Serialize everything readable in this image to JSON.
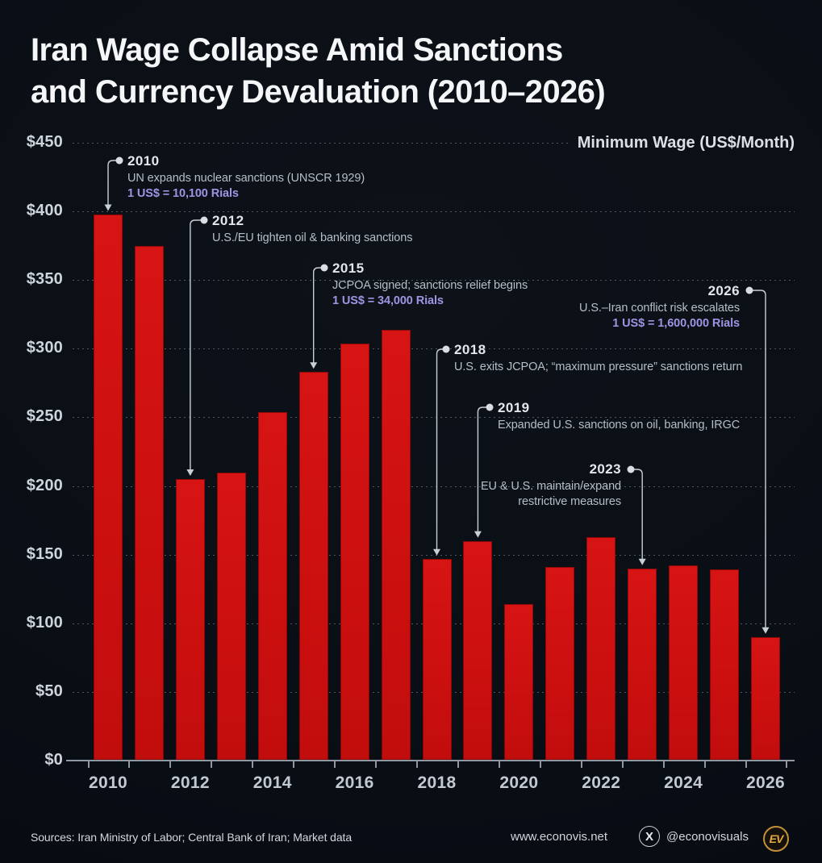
{
  "title": {
    "line1": "Iran Wage Collapse Amid Sanctions",
    "line2": "and Currency Devaluation (2010–2026)"
  },
  "axis_unit_label": "Minimum Wage (US$/Month)",
  "chart_data": {
    "type": "bar",
    "title": "Iran Wage Collapse Amid Sanctions and Currency Devaluation (2010–2026)",
    "ylabel": "Minimum Wage (US$/Month)",
    "xlabel": "",
    "ylim": [
      0,
      450
    ],
    "grid": "dashed horizontal",
    "bar_color": "#cf1010",
    "x": [
      2010,
      2011,
      2012,
      2013,
      2014,
      2015,
      2016,
      2017,
      2018,
      2019,
      2020,
      2021,
      2022,
      2023,
      2024,
      2025,
      2026
    ],
    "values": [
      398,
      375,
      205,
      210,
      254,
      283,
      304,
      314,
      147,
      160,
      114,
      141,
      163,
      140,
      142,
      139,
      90
    ],
    "y_ticks": [
      {
        "label": "$450",
        "value": 450
      },
      {
        "label": "$400",
        "value": 400
      },
      {
        "label": "$350",
        "value": 350
      },
      {
        "label": "$300",
        "value": 300
      },
      {
        "label": "$250",
        "value": 250
      },
      {
        "label": "$200",
        "value": 200
      },
      {
        "label": "$150",
        "value": 150
      },
      {
        "label": "$100",
        "value": 100
      },
      {
        "label": "$50",
        "value": 50
      },
      {
        "label": "$0",
        "value": 0
      }
    ],
    "x_tick_labels": [
      "2010",
      "2012",
      "2014",
      "2016",
      "2018",
      "2020",
      "2022",
      "2024",
      "2026"
    ]
  },
  "annotations": [
    {
      "year": "2010",
      "lines": [
        "UN expands nuclear sanctions (UNSCR 1929)"
      ],
      "rial": "1 US$ = 10,100 Rials",
      "align": "left",
      "dot": [
        148,
        199
      ],
      "text": [
        158,
        190
      ]
    },
    {
      "year": "2012",
      "lines": [
        "U.S./EU tighten oil & banking sanctions"
      ],
      "rial": null,
      "align": "left",
      "dot": [
        253,
        273
      ],
      "text": [
        263,
        264
      ]
    },
    {
      "year": "2015",
      "lines": [
        "JCPOA signed; sanctions relief begins"
      ],
      "rial": "1 US$ = 34,000 Rials",
      "align": "left",
      "dot": [
        402,
        332
      ],
      "text": [
        412,
        323
      ]
    },
    {
      "year": "2018",
      "lines": [
        "U.S. exits JCPOA; “maximum pressure” sanctions return"
      ],
      "rial": null,
      "align": "left",
      "dot": [
        553,
        433
      ],
      "text": [
        563,
        424
      ]
    },
    {
      "year": "2019",
      "lines": [
        "Expanded U.S. sanctions on oil, banking, IRGC"
      ],
      "rial": null,
      "align": "left",
      "dot": [
        607,
        505
      ],
      "text": [
        617,
        496
      ]
    },
    {
      "year": "2023",
      "lines": [
        "EU & U.S. maintain/expand",
        "restrictive measures"
      ],
      "rial": null,
      "align": "right",
      "dot": [
        782,
        582
      ],
      "text": [
        770,
        572
      ]
    },
    {
      "year": "2026",
      "lines": [
        "U.S.–Iran conflict risk escalates"
      ],
      "rial": "1 US$ = 1,600,000 Rials",
      "align": "right",
      "dot": [
        929,
        360
      ],
      "text": [
        917,
        351
      ]
    }
  ],
  "footer": {
    "sources": "Sources: Iran Ministry of Labor; Central Bank of Iran; Market data",
    "website": "www.econovis.net",
    "x_glyph": "X",
    "x_handle": "@econovisuals",
    "logo_text": "EV"
  },
  "colors": {
    "background": "#0a0e15",
    "bar": "#cf1010",
    "rial_text": "#9d95e3",
    "annotation_text": "#b7bec7",
    "axis": "#8e97a2",
    "logo_gold": "#e3aa3d"
  }
}
